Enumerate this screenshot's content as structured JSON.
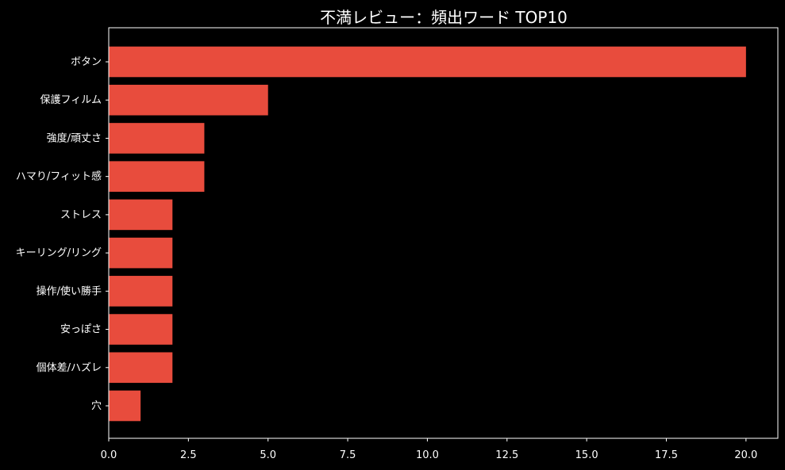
{
  "chart_data": {
    "type": "bar",
    "orientation": "horizontal",
    "title": "不満レビュー：頻出ワード TOP10",
    "xlabel": "",
    "ylabel": "",
    "categories": [
      "ボタン",
      "保護フィルム",
      "強度/頑丈さ",
      "ハマり/フィット感",
      "ストレス",
      "キーリング/リング",
      "操作/使い勝手",
      "安っぽさ",
      "個体差/ハズレ",
      "穴"
    ],
    "values": [
      20,
      5,
      3,
      3,
      2,
      2,
      2,
      2,
      2,
      1
    ],
    "xlim": [
      0,
      21
    ],
    "xticks": [
      0,
      2.5,
      5,
      7.5,
      10,
      12.5,
      15,
      17.5,
      20
    ],
    "xtick_labels": [
      "0.0",
      "2.5",
      "5.0",
      "7.5",
      "10.0",
      "12.5",
      "15.0",
      "17.5",
      "20.0"
    ],
    "grid": false,
    "legend": "none",
    "colors": {
      "background": "#000000",
      "bar": "#e84c3d",
      "axis": "#ffffff",
      "text": "#ffffff"
    }
  }
}
